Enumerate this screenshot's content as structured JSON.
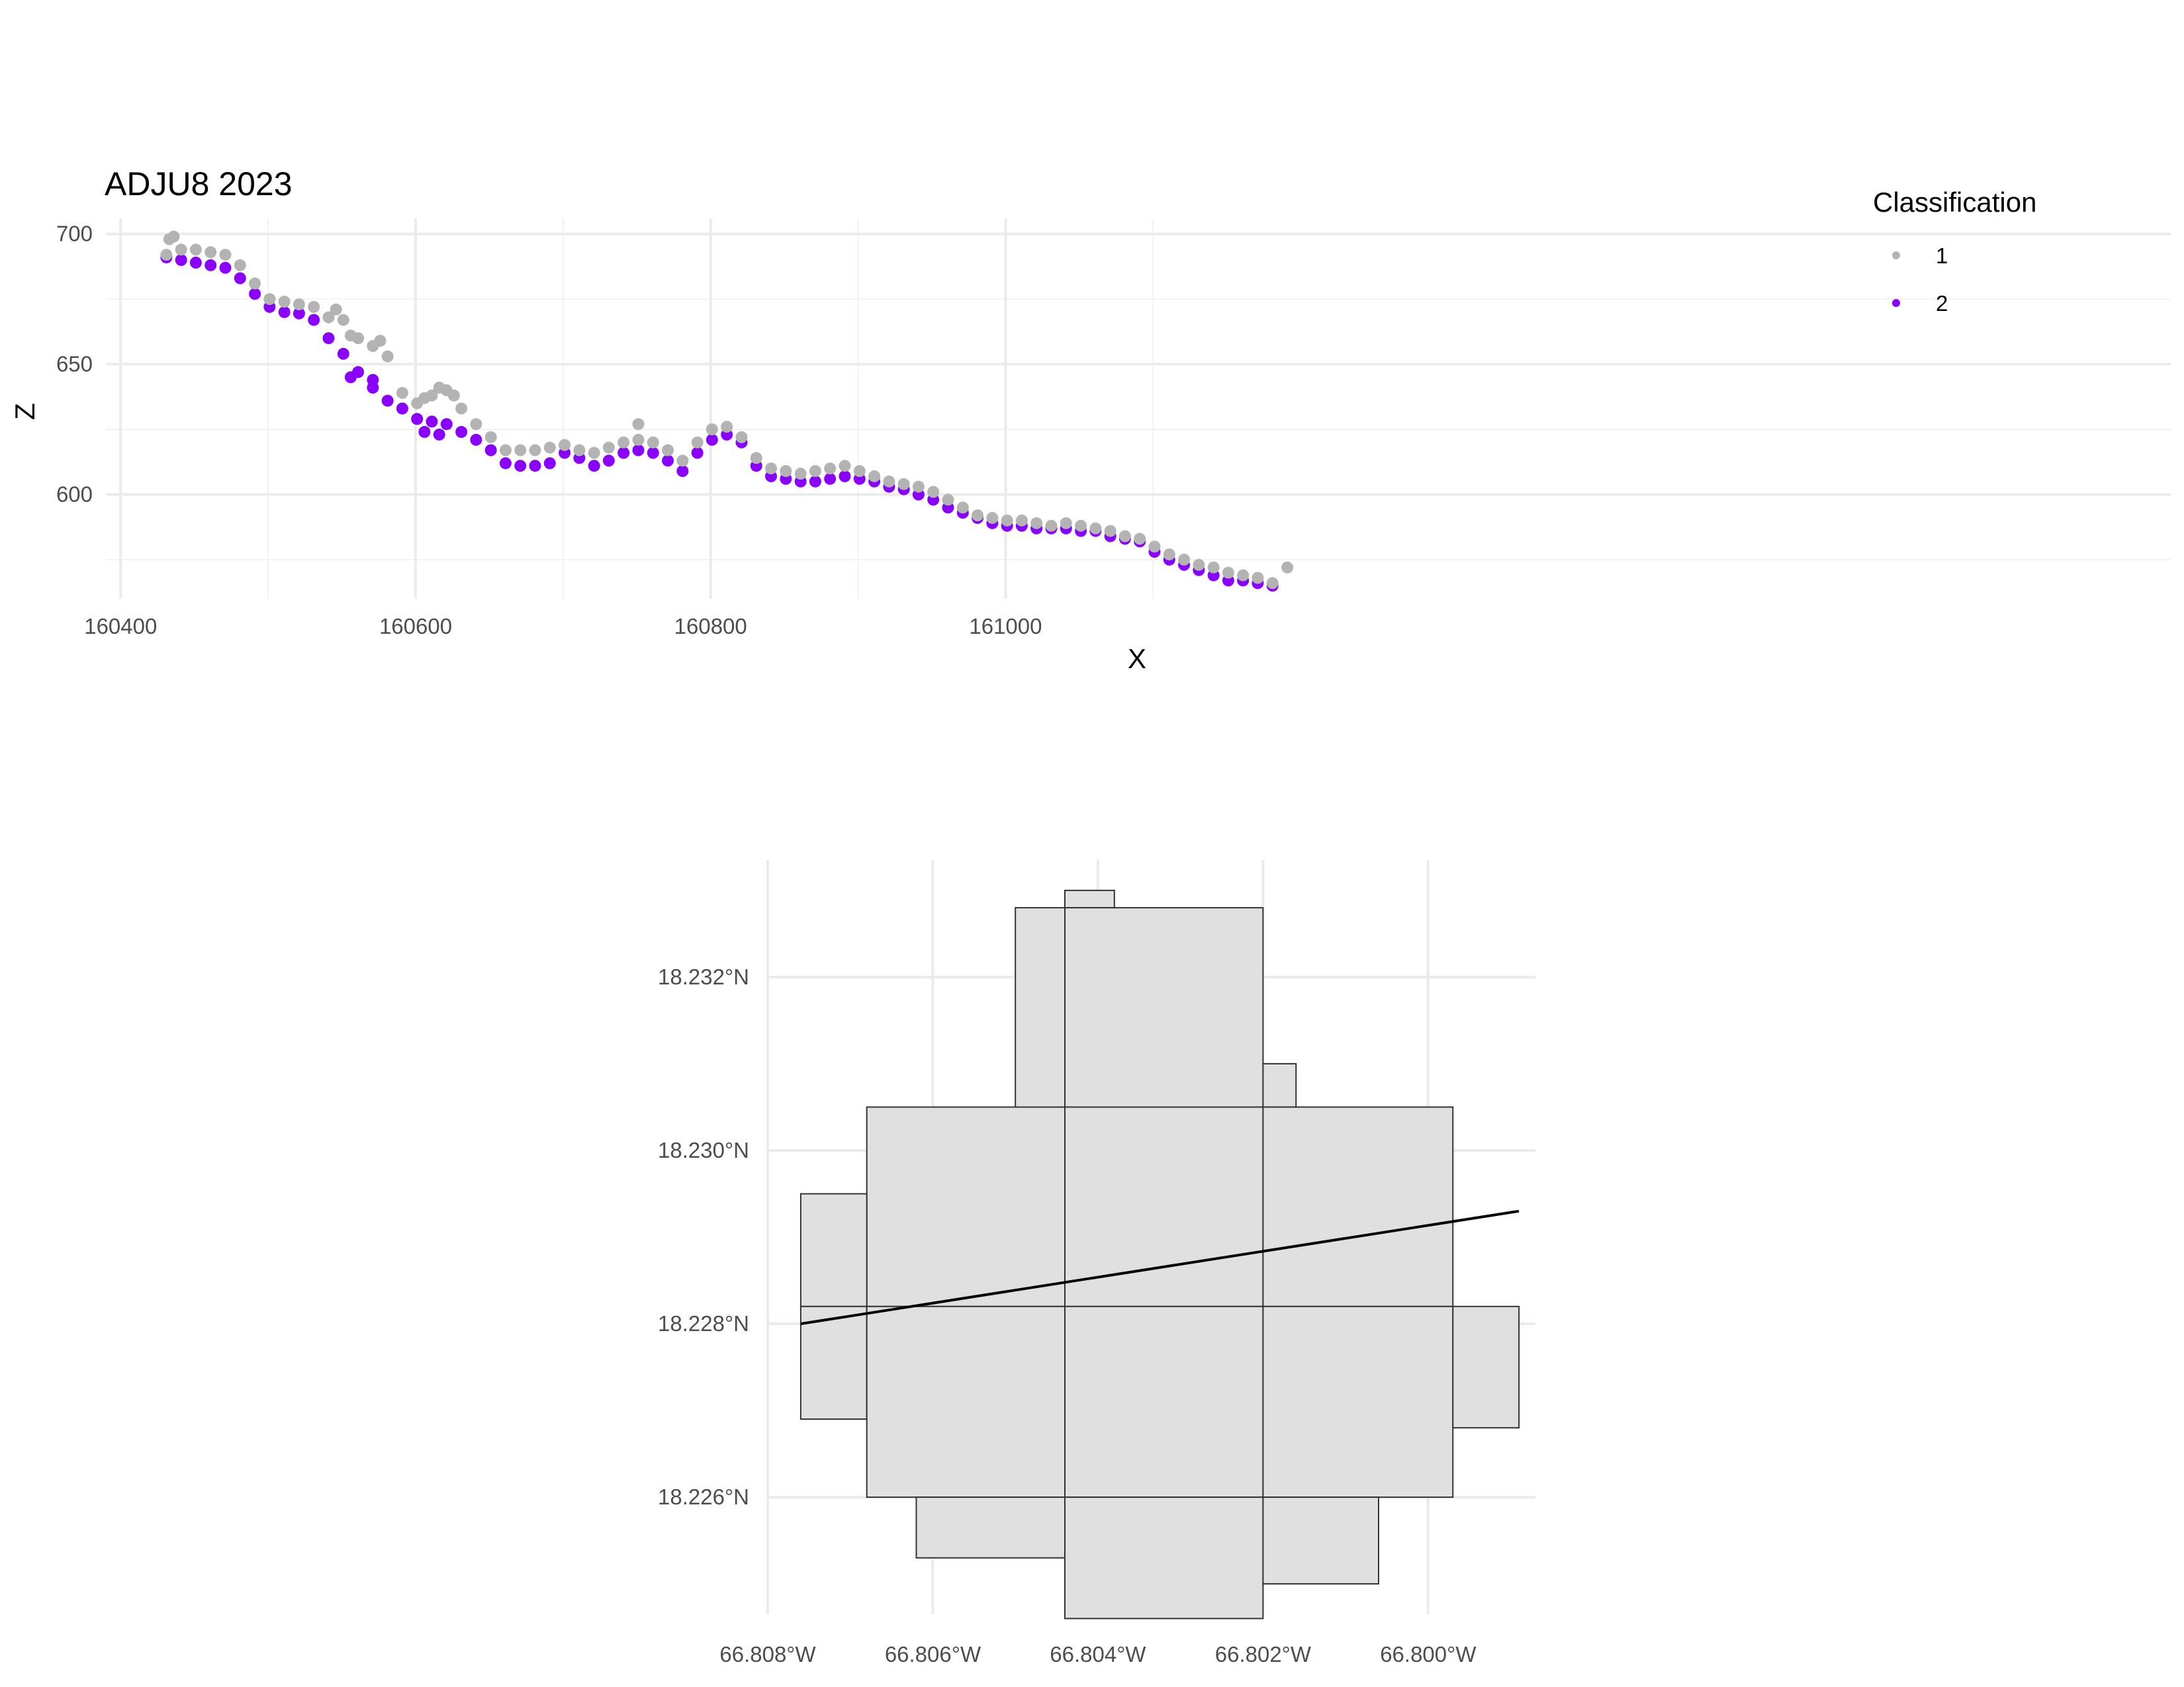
{
  "chart_data": [
    {
      "type": "scatter",
      "title": "ADJU8 2023",
      "xlabel": "X",
      "ylabel": "Z",
      "xlim": [
        160390,
        161790
      ],
      "ylim": [
        560,
        706
      ],
      "x_ticks": [
        160400,
        160600,
        160800,
        161000
      ],
      "y_ticks": [
        600,
        650,
        700
      ],
      "grid": true,
      "legend": {
        "title": "Classification",
        "position": "top-right",
        "entries": [
          {
            "label": "1",
            "color": "#b3b3b3"
          },
          {
            "label": "2",
            "color": "#8a00ff"
          }
        ]
      },
      "series": [
        {
          "name": "2",
          "color": "#8a00ff",
          "points": [
            [
              160431,
              691
            ],
            [
              160441,
              690
            ],
            [
              160451,
              689
            ],
            [
              160461,
              688
            ],
            [
              160471,
              687
            ],
            [
              160481,
              683
            ],
            [
              160491,
              677
            ],
            [
              160501,
              672
            ],
            [
              160511,
              670
            ],
            [
              160521,
              669.5
            ],
            [
              160531,
              667
            ],
            [
              160541,
              660
            ],
            [
              160551,
              654
            ],
            [
              160561,
              647
            ],
            [
              160571,
              641
            ],
            [
              160581,
              636
            ],
            [
              160591,
              633
            ],
            [
              160601,
              629
            ],
            [
              160611,
              628
            ],
            [
              160621,
              627
            ],
            [
              160631,
              624
            ],
            [
              160641,
              621
            ],
            [
              160651,
              617
            ],
            [
              160661,
              612
            ],
            [
              160671,
              611
            ],
            [
              160681,
              611
            ],
            [
              160691,
              612
            ],
            [
              160701,
              616
            ],
            [
              160711,
              614
            ],
            [
              160721,
              611
            ],
            [
              160731,
              613
            ],
            [
              160741,
              616
            ],
            [
              160751,
              617
            ],
            [
              160761,
              616
            ],
            [
              160771,
              613
            ],
            [
              160781,
              609
            ],
            [
              160791,
              616
            ],
            [
              160801,
              621
            ],
            [
              160811,
              623
            ],
            [
              160821,
              620
            ],
            [
              160831,
              611
            ],
            [
              160841,
              607
            ],
            [
              160851,
              606
            ],
            [
              160861,
              605
            ],
            [
              160871,
              605
            ],
            [
              160881,
              606
            ],
            [
              160891,
              607
            ],
            [
              160901,
              606
            ],
            [
              160911,
              605
            ],
            [
              160921,
              603
            ],
            [
              160931,
              602
            ],
            [
              160941,
              600
            ],
            [
              160951,
              598
            ],
            [
              160961,
              595
            ],
            [
              160971,
              593
            ],
            [
              160981,
              591
            ],
            [
              160991,
              589
            ],
            [
              161001,
              588
            ],
            [
              161011,
              588
            ],
            [
              161021,
              587
            ],
            [
              161031,
              587
            ],
            [
              161041,
              587
            ],
            [
              161051,
              586
            ],
            [
              161061,
              586
            ],
            [
              161071,
              584
            ],
            [
              161081,
              583
            ],
            [
              161091,
              582
            ],
            [
              161101,
              578
            ],
            [
              161111,
              575
            ],
            [
              161121,
              573
            ],
            [
              161131,
              571
            ],
            [
              161141,
              569
            ],
            [
              161151,
              567
            ],
            [
              161161,
              567
            ],
            [
              161171,
              566
            ],
            [
              161181,
              565
            ],
            [
              160556,
              645
            ],
            [
              160571,
              644
            ],
            [
              160606,
              624
            ],
            [
              160616,
              623
            ]
          ]
        },
        {
          "name": "1",
          "color": "#b3b3b3",
          "points": [
            [
              160431,
              692
            ],
            [
              160441,
              694
            ],
            [
              160451,
              694
            ],
            [
              160461,
              693
            ],
            [
              160471,
              692
            ],
            [
              160481,
              688
            ],
            [
              160491,
              681
            ],
            [
              160501,
              675
            ],
            [
              160511,
              674
            ],
            [
              160521,
              673
            ],
            [
              160531,
              672
            ],
            [
              160541,
              668
            ],
            [
              160546,
              671
            ],
            [
              160551,
              667
            ],
            [
              160556,
              661
            ],
            [
              160561,
              660
            ],
            [
              160571,
              657
            ],
            [
              160576,
              659
            ],
            [
              160581,
              653
            ],
            [
              160591,
              639
            ],
            [
              160601,
              635
            ],
            [
              160606,
              637
            ],
            [
              160611,
              638
            ],
            [
              160616,
              641
            ],
            [
              160621,
              640
            ],
            [
              160626,
              638
            ],
            [
              160631,
              633
            ],
            [
              160641,
              627
            ],
            [
              160651,
              622
            ],
            [
              160661,
              617
            ],
            [
              160671,
              617
            ],
            [
              160681,
              617
            ],
            [
              160691,
              618
            ],
            [
              160701,
              619
            ],
            [
              160711,
              617
            ],
            [
              160721,
              616
            ],
            [
              160731,
              618
            ],
            [
              160741,
              620
            ],
            [
              160751,
              621
            ],
            [
              160761,
              620
            ],
            [
              160771,
              617
            ],
            [
              160781,
              613
            ],
            [
              160791,
              620
            ],
            [
              160801,
              625
            ],
            [
              160811,
              626
            ],
            [
              160821,
              622
            ],
            [
              160831,
              614
            ],
            [
              160841,
              610
            ],
            [
              160851,
              609
            ],
            [
              160861,
              608
            ],
            [
              160871,
              609
            ],
            [
              160881,
              610
            ],
            [
              160891,
              611
            ],
            [
              160901,
              609
            ],
            [
              160911,
              607
            ],
            [
              160921,
              605
            ],
            [
              160931,
              604
            ],
            [
              160941,
              603
            ],
            [
              160951,
              601
            ],
            [
              160961,
              598
            ],
            [
              160971,
              595
            ],
            [
              160981,
              592
            ],
            [
              160991,
              591
            ],
            [
              161001,
              590
            ],
            [
              161011,
              590
            ],
            [
              161021,
              589
            ],
            [
              161031,
              588
            ],
            [
              161041,
              589
            ],
            [
              161051,
              588
            ],
            [
              161061,
              587
            ],
            [
              161071,
              586
            ],
            [
              161081,
              584
            ],
            [
              161091,
              583
            ],
            [
              161101,
              580
            ],
            [
              161111,
              577
            ],
            [
              161121,
              575
            ],
            [
              161131,
              573
            ],
            [
              161141,
              572
            ],
            [
              161151,
              570
            ],
            [
              161161,
              569
            ],
            [
              161171,
              568
            ],
            [
              161181,
              566
            ],
            [
              161191,
              572
            ],
            [
              160433,
              698
            ],
            [
              160436,
              699
            ],
            [
              160751,
              627
            ]
          ]
        }
      ]
    },
    {
      "type": "map",
      "title": "",
      "xlabel": "",
      "ylabel": "",
      "xlim": [
        -66.808,
        -66.7987
      ],
      "ylim": [
        18.22465,
        18.23335
      ],
      "x_ticks": [
        -66.808,
        -66.806,
        -66.804,
        -66.802,
        -66.8
      ],
      "y_ticks": [
        18.226,
        18.228,
        18.23,
        18.232
      ],
      "x_tick_labels": [
        "66.808°W",
        "66.806°W",
        "66.804°W",
        "66.802°W",
        "66.800°W"
      ],
      "y_tick_labels": [
        "18.226°N",
        "18.228°N",
        "18.230°N",
        "18.232°N"
      ],
      "grid": true,
      "tile_fill": "#e0e0e0",
      "tile_stroke": "#333333",
      "line_color": "#000000",
      "tiles": [
        [
          -66.8044,
          18.233,
          -66.8038,
          18.2328
        ],
        [
          -66.805,
          18.2328,
          -66.8044,
          18.2305
        ],
        [
          -66.8044,
          18.2328,
          -66.802,
          18.2305
        ],
        [
          -66.802,
          18.231,
          -66.8016,
          18.2305
        ],
        [
          -66.8068,
          18.2305,
          -66.8044,
          18.2282
        ],
        [
          -66.8044,
          18.2305,
          -66.802,
          18.2282
        ],
        [
          -66.802,
          18.2305,
          -66.7997,
          18.2282
        ],
        [
          -66.8076,
          18.2295,
          -66.8068,
          18.2282
        ],
        [
          -66.8076,
          18.2282,
          -66.8068,
          18.2269
        ],
        [
          -66.8068,
          18.2282,
          -66.8044,
          18.226
        ],
        [
          -66.8044,
          18.2282,
          -66.802,
          18.226
        ],
        [
          -66.802,
          18.2282,
          -66.7997,
          18.226
        ],
        [
          -66.7997,
          18.2282,
          -66.7989,
          18.2268
        ],
        [
          -66.8062,
          18.226,
          -66.8044,
          18.2253
        ],
        [
          -66.8044,
          18.226,
          -66.802,
          18.2246
        ],
        [
          -66.802,
          18.226,
          -66.8006,
          18.225
        ]
      ],
      "line": [
        [
          -66.8076,
          18.228
        ],
        [
          -66.7989,
          18.2293
        ]
      ]
    }
  ]
}
